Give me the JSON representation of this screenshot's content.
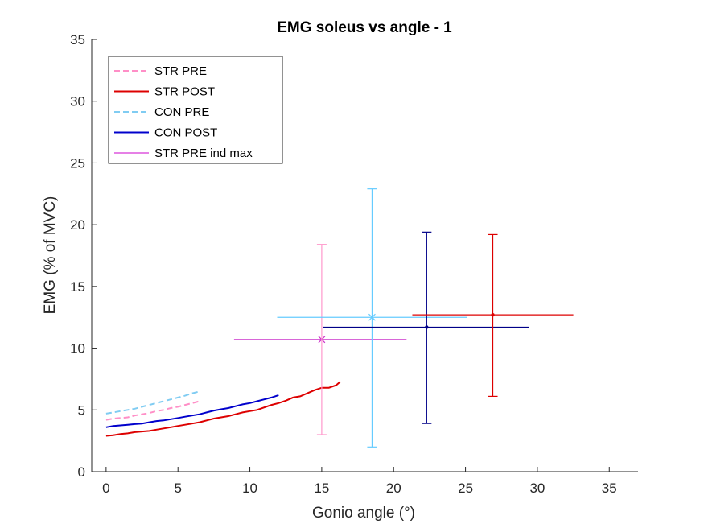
{
  "chart_data": {
    "type": "line",
    "title": "EMG soleus vs angle - 1",
    "xlabel": "Gonio angle (°)",
    "ylabel": "EMG (% of MVC)",
    "xlim": [
      -1,
      37
    ],
    "ylim": [
      0,
      35
    ],
    "xticks": [
      "0",
      "5",
      "10",
      "15",
      "20",
      "25",
      "30",
      "35"
    ],
    "yticks": [
      "0",
      "5",
      "10",
      "15",
      "20",
      "25",
      "30",
      "35"
    ],
    "grid": false,
    "legend_position": "top-left",
    "series": [
      {
        "name": "STR PRE",
        "color": "#ff8fc7",
        "style": "dashed",
        "x": [
          0,
          0.5,
          1,
          1.5,
          2,
          2.5,
          3,
          3.5,
          4,
          4.5,
          5,
          5.5,
          6,
          6.5
        ],
        "y": [
          4.2,
          4.3,
          4.35,
          4.4,
          4.55,
          4.65,
          4.75,
          4.9,
          5.0,
          5.15,
          5.25,
          5.4,
          5.55,
          5.7
        ]
      },
      {
        "name": "STR POST",
        "color": "#dd0000",
        "style": "solid",
        "x": [
          0,
          0.5,
          1,
          1.5,
          2,
          2.5,
          3,
          3.5,
          4,
          4.5,
          5,
          5.5,
          6,
          6.5,
          7,
          7.5,
          8,
          8.5,
          9,
          9.5,
          10,
          10.5,
          11,
          11.5,
          12,
          12.5,
          13,
          13.5,
          14,
          14.5,
          15,
          15.5,
          16,
          16.3
        ],
        "y": [
          2.9,
          2.95,
          3.05,
          3.1,
          3.2,
          3.25,
          3.3,
          3.4,
          3.5,
          3.6,
          3.7,
          3.8,
          3.9,
          4.0,
          4.15,
          4.3,
          4.4,
          4.5,
          4.65,
          4.8,
          4.9,
          5.0,
          5.2,
          5.4,
          5.55,
          5.75,
          6.0,
          6.1,
          6.35,
          6.6,
          6.8,
          6.8,
          7.0,
          7.3
        ]
      },
      {
        "name": "CON PRE",
        "color": "#80ccf2",
        "style": "dashed",
        "x": [
          0,
          0.5,
          1,
          1.5,
          2,
          2.5,
          3,
          3.5,
          4,
          4.5,
          5,
          5.5,
          6,
          6.5
        ],
        "y": [
          4.7,
          4.8,
          4.9,
          5.0,
          5.1,
          5.25,
          5.4,
          5.55,
          5.7,
          5.85,
          6.0,
          6.15,
          6.35,
          6.5
        ]
      },
      {
        "name": "CON POST",
        "color": "#0000cc",
        "style": "solid",
        "x": [
          0,
          0.5,
          1,
          1.5,
          2,
          2.5,
          3,
          3.5,
          4,
          4.5,
          5,
          5.5,
          6,
          6.5,
          7,
          7.5,
          8,
          8.5,
          9,
          9.5,
          10,
          10.5,
          11,
          11.5,
          12
        ],
        "y": [
          3.6,
          3.7,
          3.75,
          3.8,
          3.85,
          3.9,
          4.0,
          4.1,
          4.15,
          4.25,
          4.35,
          4.45,
          4.55,
          4.65,
          4.8,
          4.95,
          5.05,
          5.15,
          5.3,
          5.45,
          5.55,
          5.7,
          5.85,
          6.0,
          6.2
        ]
      },
      {
        "name": "STR PRE ind max",
        "color": "#cc00cc",
        "style": "thin",
        "x": [],
        "y": []
      }
    ],
    "crosshairs": [
      {
        "label": "STR PRE ind max",
        "color": "#cc33cc",
        "marker": "x",
        "x": 15.0,
        "y": 10.7,
        "xmin": 8.9,
        "xmax": 20.9,
        "ymin": null,
        "ymax": null
      },
      {
        "label": "STR PRE",
        "color": "#ff99cc",
        "marker": "none",
        "x": 15.0,
        "y": 10.7,
        "xmin": null,
        "xmax": null,
        "ymin": 3.0,
        "ymax": 18.4
      },
      {
        "label": "CON PRE",
        "color": "#66ccff",
        "marker": "x",
        "x": 18.5,
        "y": 12.5,
        "xmin": 11.9,
        "xmax": 25.1,
        "ymin": 2.0,
        "ymax": 22.9
      },
      {
        "label": "CON POST",
        "color": "#000088",
        "marker": "dot",
        "x": 22.3,
        "y": 11.7,
        "xmin": 15.1,
        "xmax": 29.4,
        "ymin": 3.9,
        "ymax": 19.4
      },
      {
        "label": "STR POST",
        "color": "#dd0000",
        "marker": "dot",
        "x": 26.9,
        "y": 12.7,
        "xmin": 21.3,
        "xmax": 32.5,
        "ymin": 6.1,
        "ymax": 19.2
      }
    ]
  }
}
